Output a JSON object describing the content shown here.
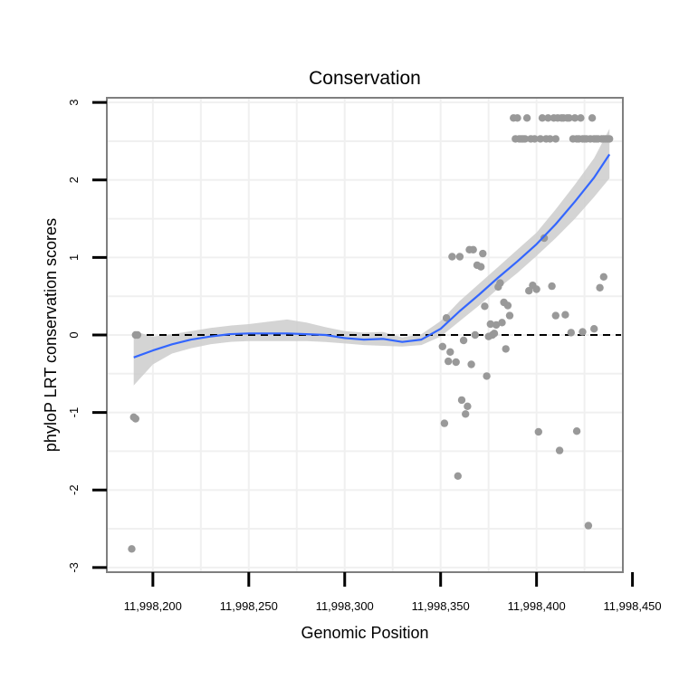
{
  "chart_data": {
    "type": "scatter",
    "title": "Conservation",
    "xlabel": "Genomic Position",
    "ylabel": "phyloP LRT conservation scores",
    "xlim": [
      11998176,
      11998445
    ],
    "ylim": [
      -3.0,
      3.0
    ],
    "x_ticks": [
      11998200,
      11998250,
      11998300,
      11998350,
      11998400,
      11998450
    ],
    "x_tick_labels": [
      "11,998,200",
      "11,998,250",
      "11,998,300",
      "11,998,350",
      "11,998,400",
      "11,998,450"
    ],
    "y_ticks": [
      -3,
      -2,
      -1,
      0,
      1,
      2,
      3
    ],
    "y_tick_labels": [
      "-3",
      "-2",
      "-1",
      "0",
      "1",
      "2",
      "3"
    ],
    "reference_line": {
      "y": 0,
      "style": "dashed"
    },
    "grid": true,
    "point_color": "#999999",
    "smooth_color": "#3366ff",
    "band_color": "#cccccc",
    "points": [
      [
        11998189,
        -2.76
      ],
      [
        11998190,
        -1.06
      ],
      [
        11998191,
        -1.08
      ],
      [
        11998191,
        0.0
      ],
      [
        11998192,
        0.0
      ],
      [
        11998351,
        -0.15
      ],
      [
        11998352,
        -1.14
      ],
      [
        11998353,
        0.22
      ],
      [
        11998354,
        -0.34
      ],
      [
        11998355,
        -0.22
      ],
      [
        11998356,
        1.01
      ],
      [
        11998358,
        -0.35
      ],
      [
        11998359,
        -1.82
      ],
      [
        11998360,
        1.01
      ],
      [
        11998361,
        -0.84
      ],
      [
        11998362,
        -0.07
      ],
      [
        11998363,
        -1.02
      ],
      [
        11998364,
        -0.92
      ],
      [
        11998365,
        1.1
      ],
      [
        11998366,
        -0.38
      ],
      [
        11998367,
        1.1
      ],
      [
        11998368,
        0.0
      ],
      [
        11998369,
        0.9
      ],
      [
        11998371,
        0.88
      ],
      [
        11998372,
        1.05
      ],
      [
        11998373,
        0.37
      ],
      [
        11998374,
        -0.53
      ],
      [
        11998375,
        -0.02
      ],
      [
        11998376,
        0.14
      ],
      [
        11998377,
        0.0
      ],
      [
        11998378,
        0.02
      ],
      [
        11998379,
        0.13
      ],
      [
        11998380,
        0.62
      ],
      [
        11998381,
        0.67
      ],
      [
        11998382,
        0.16
      ],
      [
        11998383,
        0.42
      ],
      [
        11998384,
        -0.18
      ],
      [
        11998385,
        0.38
      ],
      [
        11998386,
        0.25
      ],
      [
        11998388,
        2.8
      ],
      [
        11998389,
        2.53
      ],
      [
        11998390,
        2.8
      ],
      [
        11998391,
        2.53
      ],
      [
        11998392,
        2.53
      ],
      [
        11998393,
        2.53
      ],
      [
        11998394,
        2.53
      ],
      [
        11998395,
        2.8
      ],
      [
        11998396,
        0.57
      ],
      [
        11998397,
        2.53
      ],
      [
        11998398,
        0.64
      ],
      [
        11998399,
        2.53
      ],
      [
        11998400,
        0.59
      ],
      [
        11998401,
        -1.25
      ],
      [
        11998402,
        2.53
      ],
      [
        11998403,
        2.8
      ],
      [
        11998404,
        1.25
      ],
      [
        11998405,
        2.53
      ],
      [
        11998406,
        2.8
      ],
      [
        11998407,
        2.53
      ],
      [
        11998408,
        0.63
      ],
      [
        11998409,
        2.8
      ],
      [
        11998410,
        0.25
      ],
      [
        11998410,
        2.53
      ],
      [
        11998411,
        2.8
      ],
      [
        11998412,
        -1.49
      ],
      [
        11998413,
        2.8
      ],
      [
        11998414,
        2.8
      ],
      [
        11998415,
        0.26
      ],
      [
        11998416,
        2.8
      ],
      [
        11998417,
        2.8
      ],
      [
        11998418,
        0.03
      ],
      [
        11998419,
        2.53
      ],
      [
        11998420,
        2.8
      ],
      [
        11998421,
        -1.24
      ],
      [
        11998421,
        2.53
      ],
      [
        11998422,
        2.53
      ],
      [
        11998423,
        2.8
      ],
      [
        11998424,
        0.04
      ],
      [
        11998424,
        2.53
      ],
      [
        11998425,
        2.53
      ],
      [
        11998426,
        2.53
      ],
      [
        11998427,
        -2.46
      ],
      [
        11998428,
        2.53
      ],
      [
        11998429,
        2.8
      ],
      [
        11998430,
        0.08
      ],
      [
        11998430,
        2.53
      ],
      [
        11998431,
        2.53
      ],
      [
        11998432,
        2.53
      ],
      [
        11998433,
        0.61
      ],
      [
        11998434,
        2.53
      ],
      [
        11998435,
        0.75
      ],
      [
        11998435,
        2.53
      ],
      [
        11998436,
        2.53
      ],
      [
        11998437,
        2.53
      ],
      [
        11998438,
        2.53
      ]
    ],
    "smooth_fit": {
      "x": [
        11998190,
        11998200,
        11998210,
        11998220,
        11998230,
        11998240,
        11998250,
        11998260,
        11998270,
        11998280,
        11998290,
        11998300,
        11998310,
        11998320,
        11998330,
        11998340,
        11998350,
        11998360,
        11998370,
        11998380,
        11998390,
        11998400,
        11998410,
        11998420,
        11998430,
        11998438
      ],
      "y": [
        -0.29,
        -0.2,
        -0.12,
        -0.06,
        -0.02,
        0.01,
        0.02,
        0.02,
        0.02,
        0.01,
        0.0,
        -0.04,
        -0.06,
        -0.05,
        -0.09,
        -0.06,
        0.08,
        0.31,
        0.52,
        0.74,
        0.95,
        1.17,
        1.43,
        1.72,
        2.03,
        2.33
      ],
      "lower": [
        -0.65,
        -0.38,
        -0.24,
        -0.17,
        -0.12,
        -0.09,
        -0.08,
        -0.08,
        -0.08,
        -0.08,
        -0.09,
        -0.11,
        -0.13,
        -0.14,
        -0.15,
        -0.13,
        -0.02,
        0.18,
        0.38,
        0.6,
        0.8,
        1.02,
        1.25,
        1.5,
        1.78,
        2.02
      ],
      "upper": [
        0.05,
        -0.02,
        0.01,
        0.05,
        0.09,
        0.12,
        0.14,
        0.17,
        0.2,
        0.16,
        0.1,
        0.05,
        0.03,
        0.04,
        -0.03,
        0.01,
        0.18,
        0.44,
        0.66,
        0.88,
        1.1,
        1.32,
        1.62,
        1.94,
        2.28,
        2.66
      ]
    }
  }
}
